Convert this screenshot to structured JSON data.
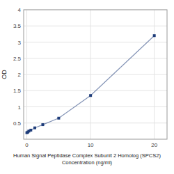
{
  "chart_data": {
    "type": "line",
    "x_label": [
      "Human Signal Peptidase Complex Subunit 2 Homolog (SPCS2)",
      "Concentration (ng/ml)"
    ],
    "y_label": "OD",
    "x": [
      0,
      0.156,
      0.313,
      0.625,
      1.25,
      2.5,
      5,
      10,
      20
    ],
    "series": [
      {
        "values": [
          0.2,
          0.22,
          0.25,
          0.28,
          0.35,
          0.45,
          0.65,
          1.35,
          3.2
        ],
        "color": "#1f3d7a",
        "marker": "square"
      }
    ],
    "xlim": [
      -0.5,
      22
    ],
    "ylim": [
      0,
      4
    ],
    "xticks": [
      0,
      10,
      20
    ],
    "yticks": [
      0.5,
      1.0,
      1.5,
      2.0,
      2.5,
      3.0,
      3.5,
      4.0
    ],
    "grid": true
  }
}
